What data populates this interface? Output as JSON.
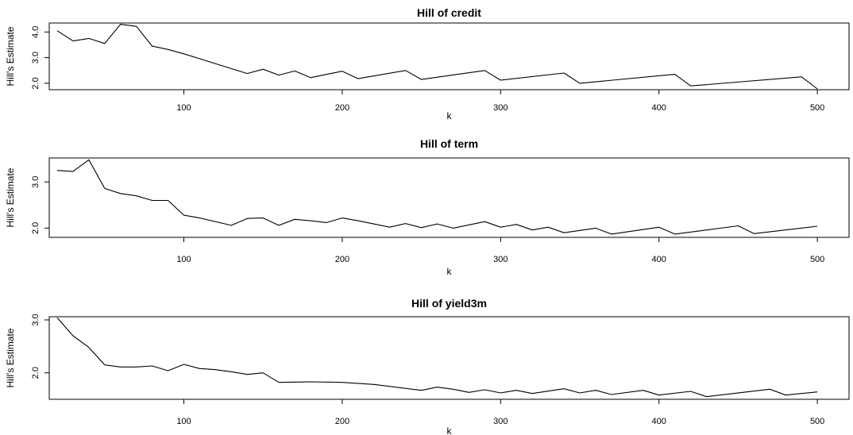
{
  "chart_data": [
    {
      "type": "line",
      "title": "Hill of credit",
      "xlabel": "k",
      "ylabel": "Hill's Estimate",
      "xlim": [
        15,
        520
      ],
      "ylim": [
        1.75,
        4.35
      ],
      "xticks": [
        100,
        200,
        300,
        400,
        500
      ],
      "yticks": [
        2.0,
        3.0,
        4.0
      ],
      "ytick_labels": [
        "2.0",
        "3.0",
        "4.0"
      ],
      "grid": false,
      "x": [
        20,
        30,
        40,
        50,
        60,
        70,
        80,
        90,
        100,
        140,
        150,
        160,
        170,
        180,
        200,
        210,
        240,
        250,
        290,
        300,
        340,
        350,
        410,
        420,
        490,
        500
      ],
      "values": [
        4.05,
        3.65,
        3.75,
        3.55,
        4.3,
        4.22,
        3.45,
        3.32,
        3.15,
        2.38,
        2.55,
        2.32,
        2.48,
        2.22,
        2.47,
        2.18,
        2.5,
        2.15,
        2.5,
        2.12,
        2.4,
        2.0,
        2.35,
        1.9,
        2.25,
        1.78
      ]
    },
    {
      "type": "line",
      "title": "Hill of term",
      "xlabel": "k",
      "ylabel": "Hill's Estimate",
      "xlim": [
        15,
        520
      ],
      "ylim": [
        1.8,
        3.52
      ],
      "xticks": [
        100,
        200,
        300,
        400,
        500
      ],
      "yticks": [
        2.0,
        3.0
      ],
      "ytick_labels": [
        "2.0",
        "3.0"
      ],
      "grid": false,
      "x": [
        20,
        30,
        40,
        50,
        60,
        70,
        80,
        90,
        100,
        110,
        130,
        140,
        150,
        160,
        170,
        180,
        190,
        200,
        210,
        230,
        240,
        250,
        260,
        270,
        290,
        300,
        310,
        320,
        330,
        340,
        360,
        370,
        400,
        410,
        450,
        460,
        500
      ],
      "values": [
        3.25,
        3.23,
        3.48,
        2.86,
        2.75,
        2.7,
        2.6,
        2.6,
        2.28,
        2.22,
        2.06,
        2.21,
        2.22,
        2.06,
        2.19,
        2.16,
        2.12,
        2.22,
        2.16,
        2.02,
        2.1,
        2.01,
        2.09,
        2.0,
        2.14,
        2.02,
        2.08,
        1.96,
        2.02,
        1.9,
        2.0,
        1.87,
        2.02,
        1.87,
        2.05,
        1.88,
        2.04
      ]
    },
    {
      "type": "line",
      "title": "Hill of yield3m",
      "xlabel": "k",
      "ylabel": "Hill's Estimate",
      "xlim": [
        15,
        520
      ],
      "ylim": [
        1.5,
        3.06
      ],
      "xticks": [
        100,
        200,
        300,
        400,
        500
      ],
      "yticks": [
        2.0,
        3.0
      ],
      "ytick_labels": [
        "2.0",
        "3.0"
      ],
      "grid": false,
      "x": [
        20,
        30,
        40,
        50,
        60,
        70,
        80,
        90,
        100,
        110,
        120,
        130,
        140,
        150,
        160,
        180,
        200,
        220,
        250,
        260,
        270,
        280,
        290,
        300,
        310,
        320,
        340,
        350,
        360,
        370,
        390,
        400,
        420,
        430,
        470,
        480,
        500
      ],
      "values": [
        3.04,
        2.7,
        2.48,
        2.15,
        2.11,
        2.11,
        2.13,
        2.04,
        2.16,
        2.08,
        2.06,
        2.02,
        1.97,
        2.0,
        1.82,
        1.83,
        1.82,
        1.78,
        1.67,
        1.73,
        1.69,
        1.63,
        1.68,
        1.62,
        1.67,
        1.61,
        1.7,
        1.62,
        1.67,
        1.59,
        1.67,
        1.58,
        1.65,
        1.55,
        1.69,
        1.58,
        1.64
      ]
    }
  ]
}
